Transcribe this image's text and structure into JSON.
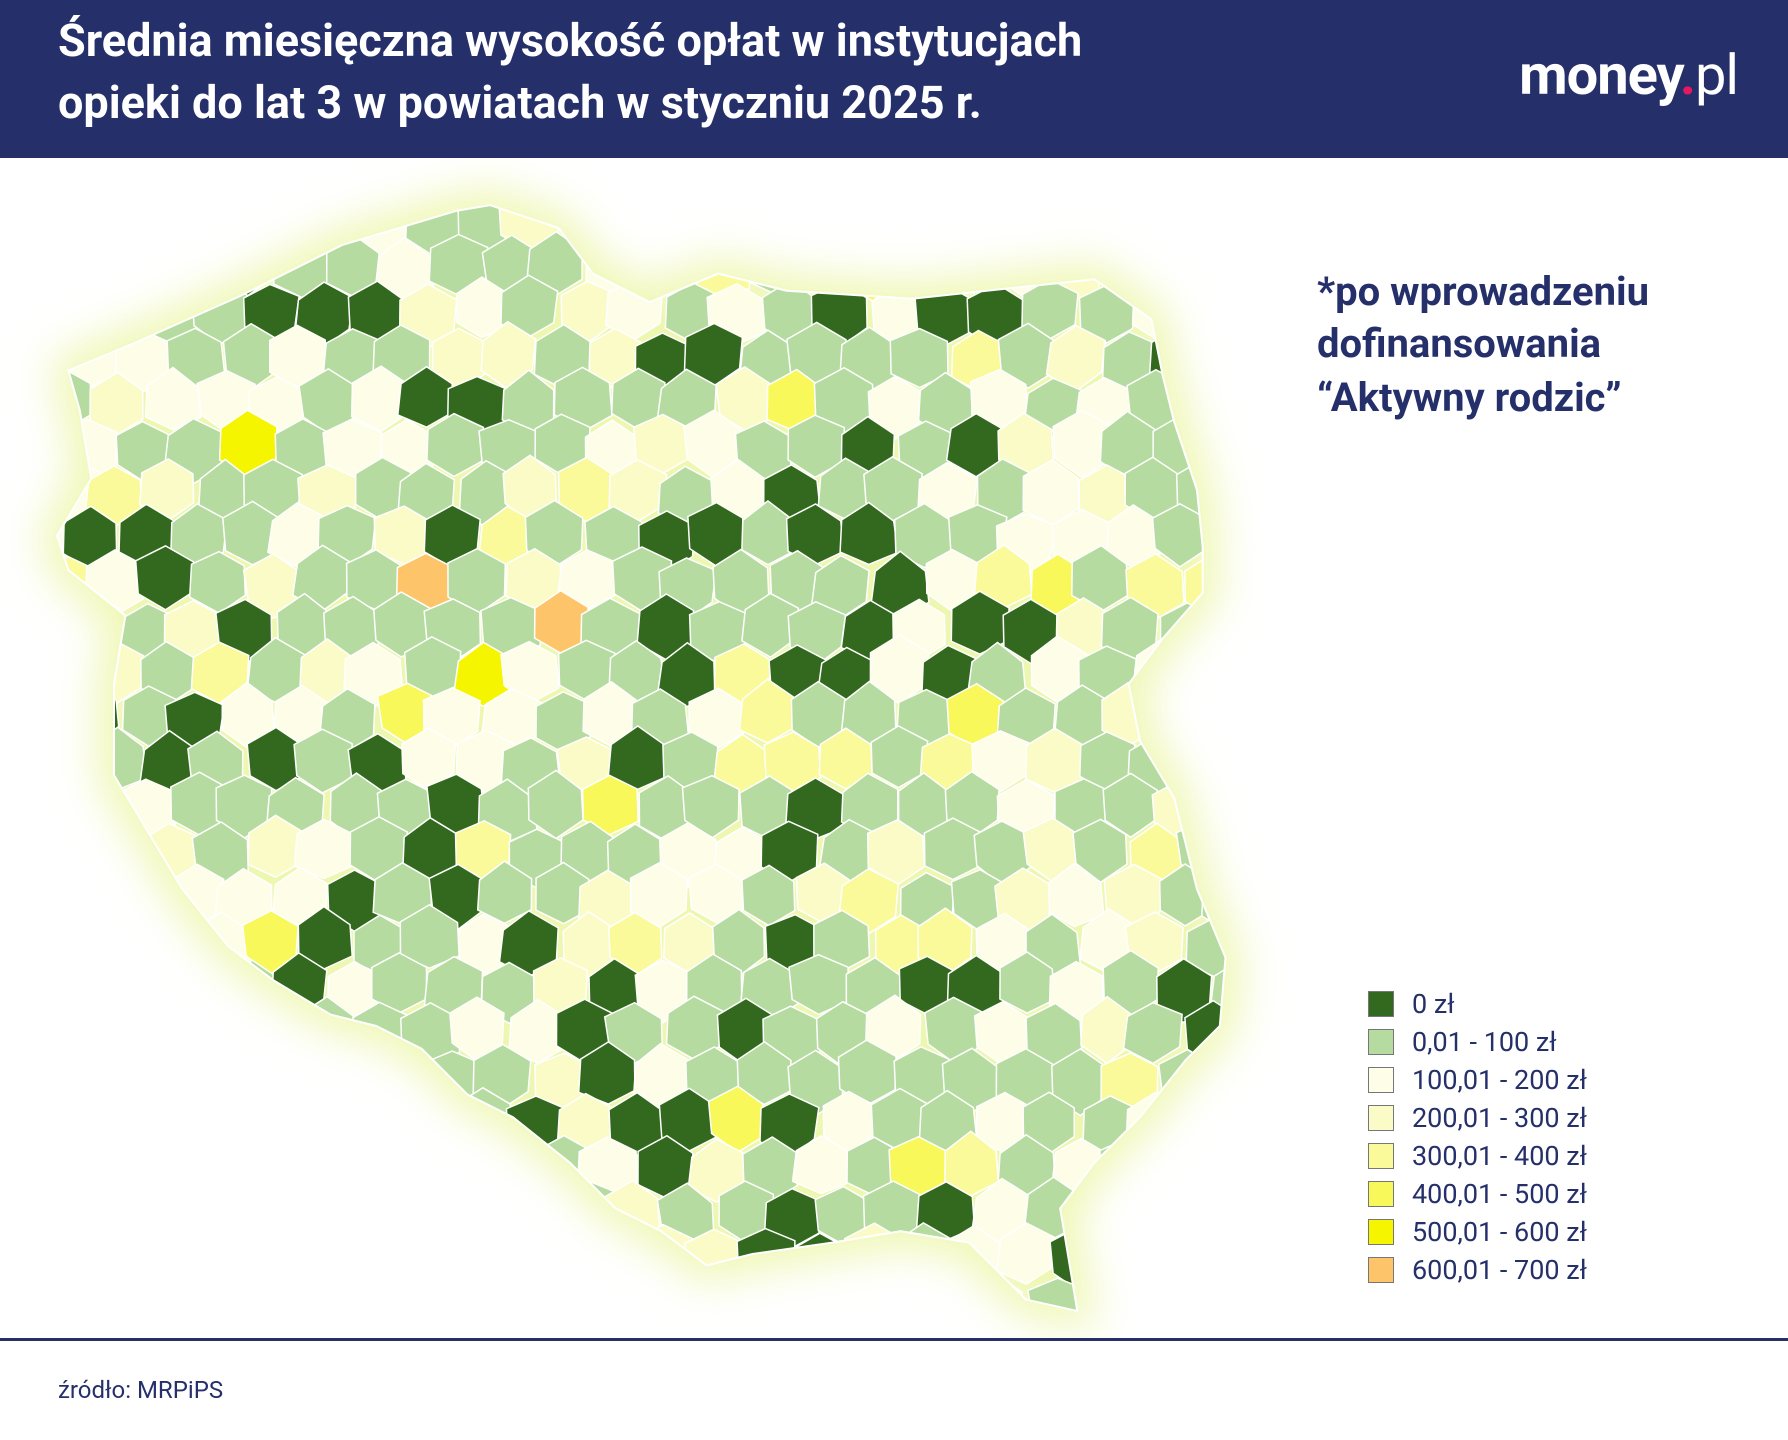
{
  "header": {
    "title_lines": [
      "Średnia miesięczna wysokość opłat w instytucjach",
      "opieki do lat 3 w powiatach w styczniu 2025 r."
    ],
    "logo": {
      "word": "money",
      "dot": ".",
      "suffix": "pl"
    }
  },
  "note": [
    "*po wprowadzeniu",
    "dofinansowania",
    "“Aktywny rodzic”"
  ],
  "legend": [
    {
      "label": "0 zł",
      "color": "#33691e"
    },
    {
      "label": "0,01 - 100 zł",
      "color": "#b5dba0"
    },
    {
      "label": "100,01 - 200 zł",
      "color": "#fdfde8"
    },
    {
      "label": "200,01 - 300 zł",
      "color": "#fbfbc8"
    },
    {
      "label": "300,01 - 400 zł",
      "color": "#fafa9a"
    },
    {
      "label": "400,01 - 500 zł",
      "color": "#f8f85a"
    },
    {
      "label": "500,01 - 600 zł",
      "color": "#f5f500"
    },
    {
      "label": "600,01 - 700 zł",
      "color": "#fdc46a"
    }
  ],
  "source": "źródło: MRPiPS"
}
